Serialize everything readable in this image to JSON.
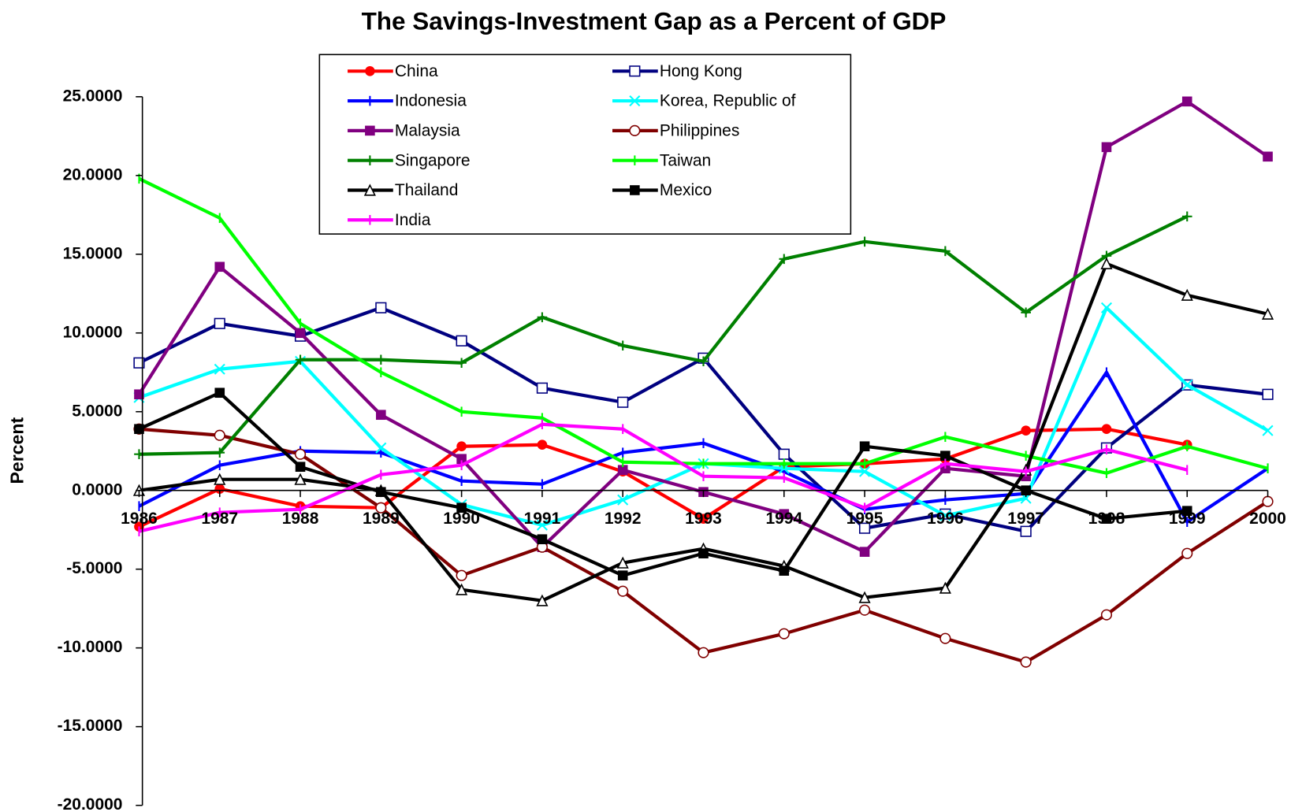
{
  "chart_data": {
    "type": "line",
    "title": "The Savings-Investment Gap as a Percent of GDP",
    "y_label": "Percent",
    "categories": [
      "1986",
      "1987",
      "1988",
      "1989",
      "1990",
      "1991",
      "1992",
      "1993",
      "1994",
      "1995",
      "1996",
      "1997",
      "1998",
      "1999",
      "2000"
    ],
    "ylim": [
      -20,
      25
    ],
    "yticks": [
      {
        "value": -20,
        "label": "-20.0000"
      },
      {
        "value": -15,
        "label": "-15.0000"
      },
      {
        "value": -10,
        "label": "-10.0000"
      },
      {
        "value": -5,
        "label": "-5.0000"
      },
      {
        "value": 0,
        "label": "0.0000"
      },
      {
        "value": 5,
        "label": "5.0000"
      },
      {
        "value": 10,
        "label": "10.0000"
      },
      {
        "value": 15,
        "label": "15.0000"
      },
      {
        "value": 20,
        "label": "20.0000"
      },
      {
        "value": 25,
        "label": "25.0000"
      }
    ],
    "grid": false,
    "series": [
      {
        "name": "China",
        "color": "#ff0000",
        "marker": "circle-filled",
        "values": [
          -2.3,
          0.1,
          -1.0,
          -1.1,
          2.8,
          2.9,
          1.2,
          -1.8,
          1.5,
          1.7,
          2.0,
          3.8,
          3.9,
          2.9,
          null
        ]
      },
      {
        "name": "Hong Kong",
        "color": "#000080",
        "marker": "square-open",
        "values": [
          8.1,
          10.6,
          9.8,
          11.6,
          9.5,
          6.5,
          5.6,
          8.4,
          2.3,
          -2.4,
          -1.5,
          -2.6,
          2.7,
          6.7,
          6.1
        ]
      },
      {
        "name": "Indonesia",
        "color": "#0000ff",
        "marker": "tick",
        "values": [
          -1.0,
          1.6,
          2.5,
          2.4,
          0.6,
          0.4,
          2.4,
          3.0,
          1.2,
          -1.2,
          -0.6,
          -0.2,
          7.5,
          -2.0,
          1.4
        ]
      },
      {
        "name": "Korea, Republic of",
        "color": "#00ffff",
        "marker": "cross",
        "values": [
          5.9,
          7.7,
          8.2,
          2.7,
          -0.9,
          -2.2,
          -0.6,
          1.7,
          1.4,
          1.2,
          -1.6,
          -0.5,
          11.6,
          6.7,
          3.8
        ]
      },
      {
        "name": "Malaysia",
        "color": "#800080",
        "marker": "square-filled",
        "values": [
          6.1,
          14.2,
          10.0,
          4.8,
          2.0,
          -3.6,
          1.3,
          -0.1,
          -1.5,
          -3.9,
          1.4,
          0.9,
          21.8,
          24.7,
          21.2
        ]
      },
      {
        "name": "Philippines",
        "color": "#800000",
        "marker": "circle-open",
        "values": [
          3.9,
          3.5,
          2.3,
          -1.1,
          -5.4,
          -3.6,
          -6.4,
          -10.3,
          -9.1,
          -7.6,
          -9.4,
          -10.9,
          -7.9,
          -4.0,
          -0.7
        ]
      },
      {
        "name": "Singapore",
        "color": "#008000",
        "marker": "plus",
        "values": [
          2.3,
          2.4,
          8.3,
          8.3,
          8.1,
          11.0,
          9.2,
          8.2,
          14.7,
          15.8,
          15.2,
          11.3,
          14.9,
          17.4,
          null
        ]
      },
      {
        "name": "Taiwan",
        "color": "#00ff00",
        "marker": "tick",
        "values": [
          19.8,
          17.3,
          10.6,
          7.5,
          5.0,
          4.6,
          1.8,
          1.7,
          1.7,
          1.7,
          3.4,
          2.2,
          1.1,
          2.8,
          1.4
        ]
      },
      {
        "name": "Thailand",
        "color": "#000000",
        "marker": "triangle-open",
        "values": [
          0.0,
          0.7,
          0.7,
          0.0,
          -6.3,
          -7.0,
          -4.6,
          -3.7,
          -4.8,
          -6.8,
          -6.2,
          1.3,
          14.4,
          12.4,
          11.2
        ]
      },
      {
        "name": "Mexico",
        "color": "#000000",
        "marker": "square-filled",
        "values": [
          3.9,
          6.2,
          1.5,
          -0.1,
          -1.1,
          -3.1,
          -5.4,
          -4.0,
          -5.1,
          2.8,
          2.2,
          0.0,
          -1.8,
          -1.3,
          null
        ]
      },
      {
        "name": "India",
        "color": "#ff00ff",
        "marker": "tick",
        "values": [
          -2.6,
          -1.4,
          -1.2,
          1.0,
          1.6,
          4.2,
          3.9,
          0.9,
          0.8,
          -1.1,
          1.7,
          1.2,
          2.6,
          1.3,
          null
        ]
      }
    ]
  }
}
